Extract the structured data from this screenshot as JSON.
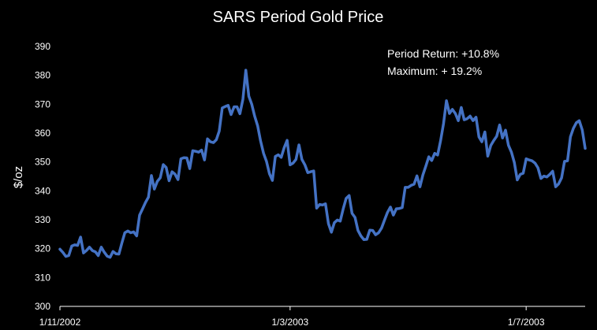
{
  "chart_data": {
    "type": "line",
    "title": "SARS Period Gold Price",
    "ylabel": "$/oz",
    "xlabel": "",
    "ylim": [
      300,
      390
    ],
    "yticks": [
      "300",
      "310",
      "320",
      "330",
      "340",
      "350",
      "360",
      "370",
      "380",
      "390"
    ],
    "xticks": [
      "1/11/2002",
      "1/3/2003",
      "1/7/2003"
    ],
    "grid": false,
    "annotations": [
      "Period Return: +10.8%",
      "Maximum: + 19.2%"
    ],
    "colors": {
      "line": "#4472C4",
      "background": "#000000",
      "text": "#ffffff"
    },
    "series": [
      {
        "values": [
          319.8,
          318.7,
          317.3,
          317.6,
          320.9,
          321.3,
          321.1,
          324.0,
          318.5,
          319.4,
          320.5,
          319.3,
          318.9,
          317.6,
          320.5,
          318.8,
          317.4,
          317.0,
          319.0,
          318.2,
          318.1,
          322.0,
          325.5,
          326.1,
          325.5,
          325.8,
          324.4,
          331.6,
          333.8,
          336.0,
          337.8,
          345.3,
          340.6,
          343.3,
          344.5,
          349.1,
          348.1,
          343.5,
          346.6,
          345.8,
          343.9,
          351.1,
          351.5,
          351.4,
          347.7,
          353.9,
          353.7,
          353.4,
          354.1,
          350.7,
          358.0,
          357.0,
          356.7,
          357.7,
          360.7,
          368.7,
          369.2,
          369.6,
          366.4,
          369.1,
          369.1,
          366.7,
          371.7,
          381.8,
          372.8,
          370.0,
          365.9,
          362.5,
          357.3,
          353.0,
          350.2,
          345.9,
          343.6,
          351.9,
          352.5,
          351.6,
          355.0,
          357.5,
          349.0,
          349.6,
          350.9,
          355.9,
          350.9,
          349.0,
          346.3,
          346.6,
          346.9,
          334.0,
          335.3,
          335.1,
          335.5,
          328.6,
          325.7,
          329.0,
          329.9,
          329.5,
          333.8,
          337.4,
          338.4,
          332.2,
          330.8,
          326.3,
          324.4,
          323.1,
          323.2,
          326.4,
          326.3,
          324.8,
          325.5,
          327.1,
          329.9,
          332.5,
          334.4,
          331.6,
          333.8,
          333.9,
          334.2,
          341.2,
          341.2,
          341.9,
          342.3,
          345.2,
          341.4,
          345.5,
          348.6,
          351.8,
          350.5,
          353.0,
          352.4,
          357.4,
          363.3,
          371.2,
          366.8,
          368.2,
          366.8,
          364.3,
          368.9,
          364.6,
          365.0,
          365.9,
          364.3,
          365.5,
          358.7,
          357.0,
          360.4,
          352.0,
          355.7,
          357.4,
          358.9,
          362.8,
          358.3,
          361.0,
          355.8,
          353.4,
          349.8,
          343.8,
          345.7,
          346.1,
          351.1,
          350.7,
          350.4,
          349.6,
          348.0,
          344.3,
          345.1,
          344.8,
          345.7,
          346.8,
          341.4,
          342.4,
          344.5,
          350.2,
          350.4,
          358.7,
          361.6,
          363.6,
          364.3,
          361.1,
          354.7
        ]
      }
    ]
  }
}
